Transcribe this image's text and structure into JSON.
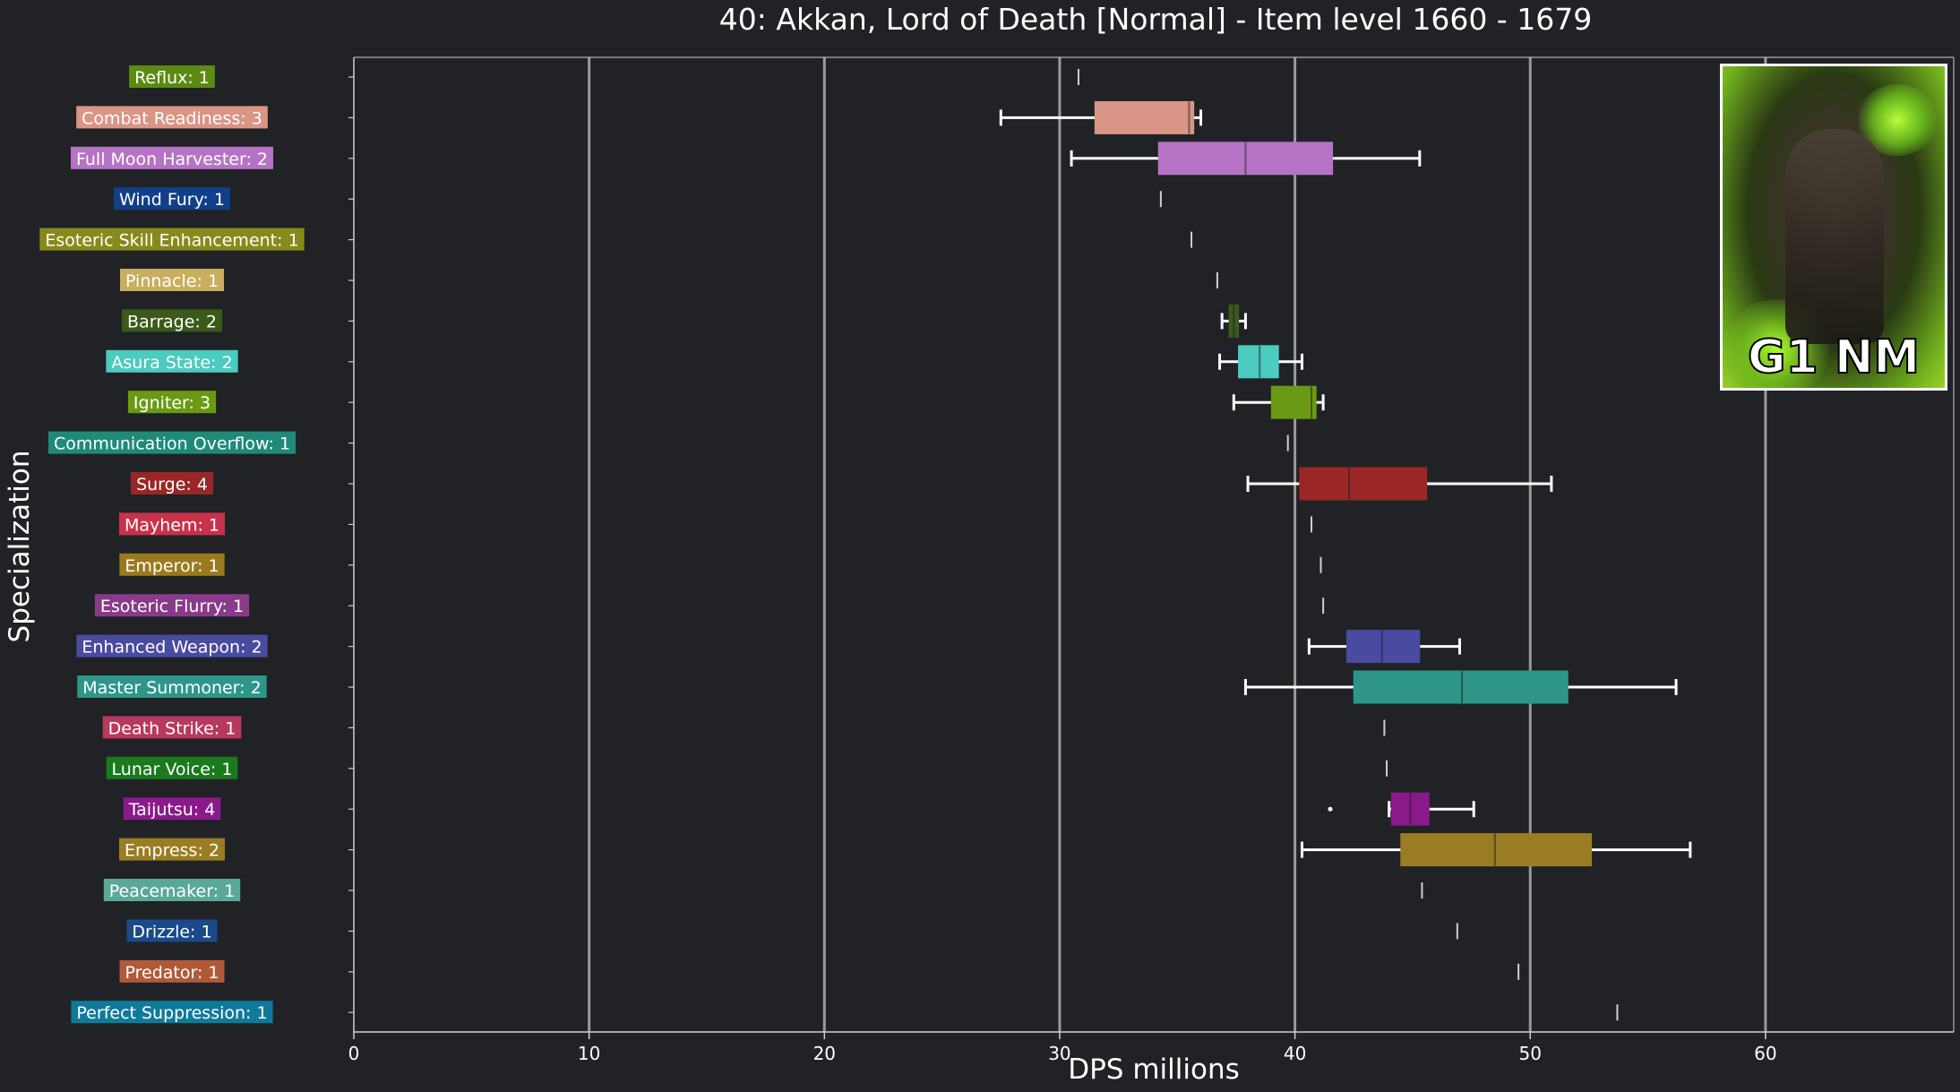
{
  "title": "40: Akkan, Lord of Death [Normal] - Item level 1660 - 1679",
  "thumbnail": {
    "label": "G1 NM"
  },
  "chart_data": {
    "type": "boxplot",
    "orientation": "horizontal",
    "title": "40: Akkan, Lord of Death [Normal] - Item level 1660 - 1679",
    "xlabel": "DPS millions",
    "ylabel": "Specialization",
    "xlim": [
      0,
      68
    ],
    "xticks": [
      0,
      10,
      20,
      30,
      40,
      50,
      60
    ],
    "grid": "vertical",
    "background": "#202226",
    "categories": [
      {
        "label": "Reflux: 1",
        "color": "#5c8a12",
        "min": 30.8,
        "q1": 30.8,
        "median": 30.8,
        "q3": 30.8,
        "max": 30.8
      },
      {
        "label": "Combat Readiness: 3",
        "color": "#d99585",
        "min": 27.5,
        "q1": 31.5,
        "median": 35.5,
        "q3": 35.7,
        "max": 36.0
      },
      {
        "label": "Full Moon Harvester: 2",
        "color": "#b673c6",
        "min": 30.5,
        "q1": 34.2,
        "median": 37.9,
        "q3": 41.6,
        "max": 45.3
      },
      {
        "label": "Wind Fury: 1",
        "color": "#123f8a",
        "min": 34.3,
        "q1": 34.3,
        "median": 34.3,
        "q3": 34.3,
        "max": 34.3
      },
      {
        "label": "Esoteric Skill Enhancement: 1",
        "color": "#878a1a",
        "min": 35.6,
        "q1": 35.6,
        "median": 35.6,
        "q3": 35.6,
        "max": 35.6
      },
      {
        "label": "Pinnacle: 1",
        "color": "#c8ae5e",
        "min": 36.7,
        "q1": 36.7,
        "median": 36.7,
        "q3": 36.7,
        "max": 36.7
      },
      {
        "label": "Barrage: 2",
        "color": "#3b5a1a",
        "min": 36.9,
        "q1": 37.2,
        "median": 37.4,
        "q3": 37.6,
        "max": 37.9
      },
      {
        "label": "Asura State: 2",
        "color": "#4ccbc0",
        "min": 36.8,
        "q1": 37.6,
        "median": 38.5,
        "q3": 39.3,
        "max": 40.3
      },
      {
        "label": "Igniter: 3",
        "color": "#6a9a14",
        "min": 37.4,
        "q1": 39.0,
        "median": 40.7,
        "q3": 40.9,
        "max": 41.2
      },
      {
        "label": "Communication Overflow: 1",
        "color": "#1f8a7a",
        "min": 39.7,
        "q1": 39.7,
        "median": 39.7,
        "q3": 39.7,
        "max": 39.7
      },
      {
        "label": "Surge: 4",
        "color": "#9a2626",
        "min": 38.0,
        "q1": 40.2,
        "median": 42.3,
        "q3": 45.6,
        "max": 50.9
      },
      {
        "label": "Mayhem: 1",
        "color": "#c8324a",
        "min": 40.7,
        "q1": 40.7,
        "median": 40.7,
        "q3": 40.7,
        "max": 40.7
      },
      {
        "label": "Emperor: 1",
        "color": "#9a7a1e",
        "min": 41.1,
        "q1": 41.1,
        "median": 41.1,
        "q3": 41.1,
        "max": 41.1
      },
      {
        "label": "Esoteric Flurry: 1",
        "color": "#8a3a8a",
        "min": 41.2,
        "q1": 41.2,
        "median": 41.2,
        "q3": 41.2,
        "max": 41.2
      },
      {
        "label": "Enhanced Weapon: 2",
        "color": "#4a4aa0",
        "min": 40.6,
        "q1": 42.2,
        "median": 43.7,
        "q3": 45.3,
        "max": 47.0
      },
      {
        "label": "Master Summoner: 2",
        "color": "#2e9688",
        "min": 37.9,
        "q1": 42.5,
        "median": 47.1,
        "q3": 51.6,
        "max": 56.2
      },
      {
        "label": "Death Strike: 1",
        "color": "#b8385e",
        "min": 43.8,
        "q1": 43.8,
        "median": 43.8,
        "q3": 43.8,
        "max": 43.8
      },
      {
        "label": "Lunar Voice: 1",
        "color": "#1a7a1e",
        "min": 43.9,
        "q1": 43.9,
        "median": 43.9,
        "q3": 43.9,
        "max": 43.9
      },
      {
        "label": "Taijutsu: 4",
        "color": "#8a1a8a",
        "min": 44.0,
        "q1": 44.1,
        "median": 44.9,
        "q3": 45.7,
        "max": 47.6,
        "outliers": [
          41.5
        ]
      },
      {
        "label": "Empress: 2",
        "color": "#9a7c22",
        "min": 40.3,
        "q1": 44.5,
        "median": 48.5,
        "q3": 52.6,
        "max": 56.8
      },
      {
        "label": "Peacemaker: 1",
        "color": "#5aa898",
        "min": 45.4,
        "q1": 45.4,
        "median": 45.4,
        "q3": 45.4,
        "max": 45.4
      },
      {
        "label": "Drizzle: 1",
        "color": "#1a4a8a",
        "min": 46.9,
        "q1": 46.9,
        "median": 46.9,
        "q3": 46.9,
        "max": 46.9
      },
      {
        "label": "Predator: 1",
        "color": "#b05a3a",
        "min": 49.5,
        "q1": 49.5,
        "median": 49.5,
        "q3": 49.5,
        "max": 49.5
      },
      {
        "label": "Perfect Suppression: 1",
        "color": "#107a9a",
        "min": 53.7,
        "q1": 53.7,
        "median": 53.7,
        "q3": 53.7,
        "max": 53.7
      }
    ]
  }
}
